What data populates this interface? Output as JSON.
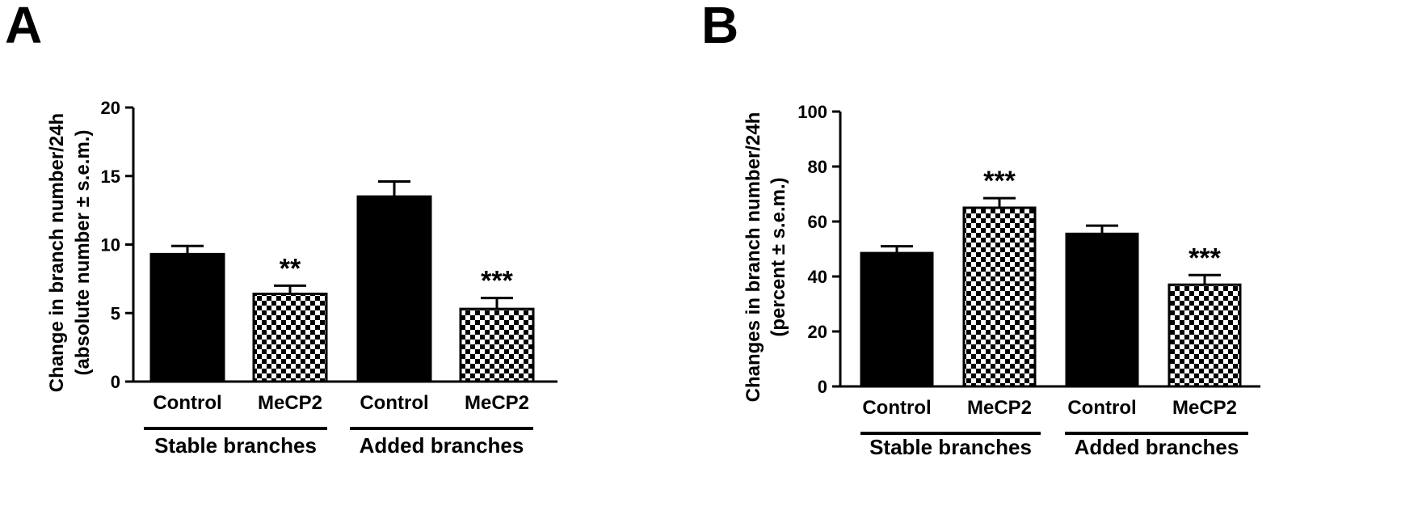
{
  "chart_data": [
    {
      "panel": "A",
      "type": "bar",
      "ylabel_line1": "Change in branch number/24h",
      "ylabel_line2": "(absolute number ± s.e.m.)",
      "ylim": [
        0,
        20
      ],
      "yticks": [
        0,
        5,
        10,
        15,
        20
      ],
      "categories": [
        "Control",
        "MeCP2",
        "Control",
        "MeCP2"
      ],
      "groups": [
        {
          "label": "Stable branches",
          "categories": [
            0,
            1
          ]
        },
        {
          "label": "Added branches",
          "categories": [
            2,
            3
          ]
        }
      ],
      "values": [
        9.3,
        6.4,
        13.5,
        5.3
      ],
      "errors": [
        0.6,
        0.6,
        1.1,
        0.8
      ],
      "fills": [
        "solid",
        "checkered",
        "solid",
        "checkered"
      ],
      "significance": [
        "",
        "**",
        "",
        "***"
      ]
    },
    {
      "panel": "B",
      "type": "bar",
      "ylabel_line1": "Changes in branch number/24h",
      "ylabel_line2": "(percent ± s.e.m.)",
      "ylim": [
        0,
        100
      ],
      "yticks": [
        0,
        20,
        40,
        60,
        80,
        100
      ],
      "categories": [
        "Control",
        "MeCP2",
        "Control",
        "MeCP2"
      ],
      "groups": [
        {
          "label": "Stable branches",
          "categories": [
            0,
            1
          ]
        },
        {
          "label": "Added branches",
          "categories": [
            2,
            3
          ]
        }
      ],
      "values": [
        48.5,
        65,
        55.5,
        37
      ],
      "errors": [
        2.5,
        3.5,
        3,
        3.5
      ],
      "fills": [
        "solid",
        "checkered",
        "solid",
        "checkered"
      ],
      "significance": [
        "",
        "***",
        "",
        "***"
      ]
    }
  ],
  "colors": {
    "bar": "#000000",
    "check_light": "#ffffff",
    "axis": "#000000"
  }
}
